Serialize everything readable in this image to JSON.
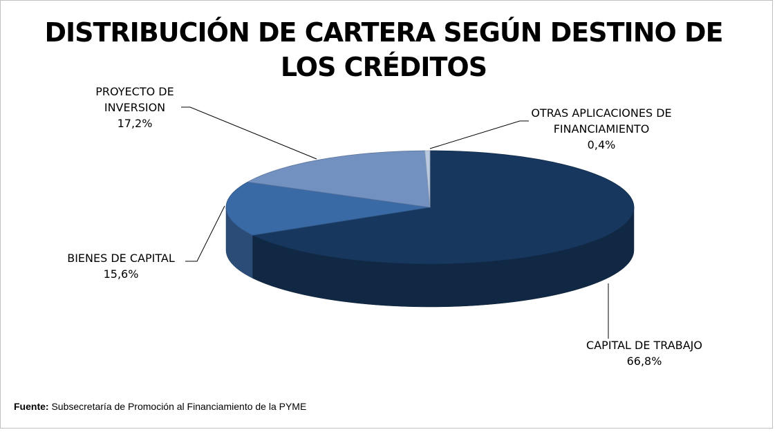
{
  "chart_data": {
    "type": "pie3d",
    "title": "DISTRIBUCIÓN DE CARTERA SEGÚN DESTINO DE LOS CRÉDITOS",
    "categories": [
      "CAPITAL DE TRABAJO",
      "BIENES DE CAPITAL",
      "PROYECTO DE INVERSION",
      "OTRAS APLICACIONES DE FINANCIAMIENTO"
    ],
    "values": [
      66.8,
      15.6,
      17.2,
      0.4
    ],
    "value_labels": [
      "66,8%",
      "15,6%",
      "17,2%",
      "0,4%"
    ],
    "colors": [
      "#17375e",
      "#3a6aa5",
      "#7291c0",
      "#b9c9e0"
    ],
    "source_label": "Fuente:",
    "source": "Subsecretaría de Promoción al Financiamiento de la PYME"
  }
}
